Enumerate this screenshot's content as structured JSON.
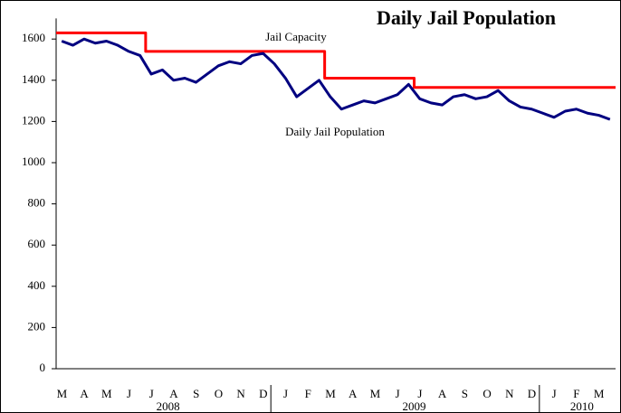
{
  "chart_data": {
    "type": "line",
    "title": "Daily Jail Population",
    "annotations": [
      "Jail Capacity",
      "Daily Jail Population"
    ],
    "categories": [
      "M",
      null,
      "A",
      null,
      "M",
      null,
      "J",
      null,
      "J",
      null,
      "A",
      null,
      "S",
      null,
      "O",
      null,
      "N",
      null,
      "D",
      null,
      "J",
      null,
      "F",
      null,
      "M",
      null,
      "A",
      null,
      "M",
      null,
      "J",
      null,
      "J",
      null,
      "A",
      null,
      "S",
      null,
      "O",
      null,
      "N",
      null,
      "D",
      null,
      "J",
      null,
      "F",
      null,
      "M",
      null
    ],
    "years": [
      "2008",
      "2008",
      "2008",
      "2008",
      "2008",
      "2008",
      "2008",
      "2008",
      "2008",
      "2008",
      "2008",
      "2008",
      "2008",
      "2008",
      "2008",
      "2008",
      "2008",
      "2008",
      "2008",
      "2008",
      "2009",
      "2009",
      "2009",
      "2009",
      "2009",
      "2009",
      "2009",
      "2009",
      "2009",
      "2009",
      "2009",
      "2009",
      "2009",
      "2009",
      "2009",
      "2009",
      "2009",
      "2009",
      "2009",
      "2009",
      "2009",
      "2009",
      "2009",
      "2009",
      "2010",
      "2010",
      "2010",
      "2010",
      "2010",
      "2010"
    ],
    "series": [
      {
        "name": "Jail Capacity",
        "color": "#ff0000",
        "step": true,
        "values": [
          1630,
          1630,
          1630,
          1630,
          1630,
          1630,
          1630,
          1630,
          1540,
          1540,
          1540,
          1540,
          1540,
          1540,
          1540,
          1540,
          1540,
          1540,
          1540,
          1540,
          1540,
          1540,
          1540,
          1540,
          1410,
          1410,
          1410,
          1410,
          1410,
          1410,
          1410,
          1410,
          1365,
          1365,
          1365,
          1365,
          1365,
          1365,
          1365,
          1365,
          1365,
          1365,
          1365,
          1365,
          1365,
          1365,
          1365,
          1365,
          1365,
          1365
        ]
      },
      {
        "name": "Daily Jail Population",
        "color": "#000080",
        "step": false,
        "values": [
          1590,
          1570,
          1600,
          1580,
          1590,
          1570,
          1540,
          1520,
          1430,
          1450,
          1400,
          1410,
          1390,
          1430,
          1470,
          1490,
          1480,
          1520,
          1530,
          1480,
          1410,
          1320,
          1360,
          1400,
          1320,
          1260,
          1280,
          1300,
          1290,
          1310,
          1330,
          1380,
          1310,
          1290,
          1280,
          1320,
          1330,
          1310,
          1320,
          1350,
          1300,
          1270,
          1260,
          1240,
          1220,
          1250,
          1260,
          1240,
          1230,
          1210
        ]
      }
    ],
    "ylim": [
      0,
      1700
    ],
    "yticks": [
      0,
      200,
      400,
      600,
      800,
      1000,
      1200,
      1400,
      1600
    ]
  }
}
